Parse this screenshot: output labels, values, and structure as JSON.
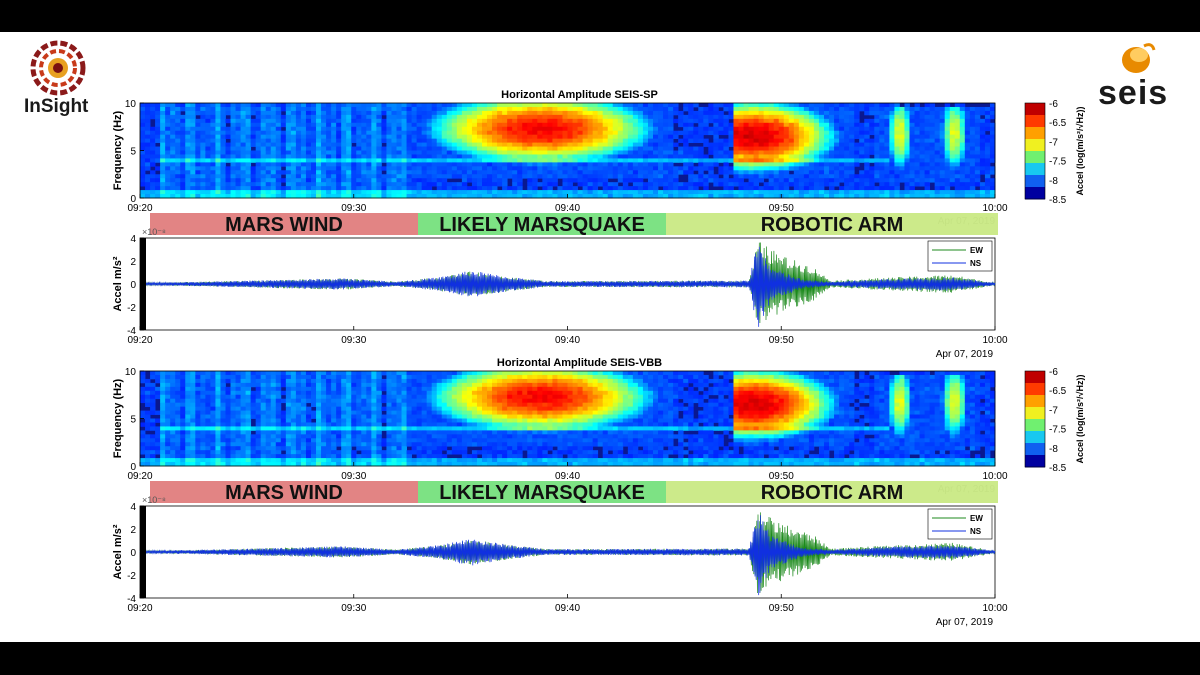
{
  "logos": {
    "left_text": "InSight",
    "right_text": "seis"
  },
  "colorbar": {
    "ticks": [
      "-6",
      "-6.5",
      "-7",
      "-7.5",
      "-8",
      "-8.5"
    ],
    "label": "Accel (log(m/s²/√Hz))",
    "colors": [
      "#c00000",
      "#ff3b00",
      "#ffa000",
      "#f0f020",
      "#70f070",
      "#18c8f0",
      "#1060f0",
      "#0000a0"
    ]
  },
  "phases": [
    {
      "label": "MARS WIND",
      "color": "#e07a7a"
    },
    {
      "label": "LIKELY MARSQUAKE",
      "color": "#72e07a"
    },
    {
      "label": "ROBOTIC ARM",
      "color": "#c8e880"
    }
  ],
  "date_label": "Apr 07, 2019",
  "legend": {
    "ew": "EW",
    "ns": "NS",
    "ew_color": "#1c8a1c",
    "ns_color": "#1030e0"
  },
  "panels": [
    {
      "spectrogram": {
        "title": "Horizontal Amplitude SEIS-SP",
        "ylabel": "Frequency (Hz)",
        "yticks": [
          "0",
          "5",
          "10"
        ],
        "xticks": [
          "09:20",
          "09:30",
          "09:40",
          "09:50",
          "10:00"
        ]
      },
      "waveform": {
        "ylabel": "Accel m/s²",
        "exponent": "×10⁻⁸",
        "yticks": [
          "4",
          "2",
          "0",
          "-2",
          "-4"
        ],
        "xticks": [
          "09:20",
          "09:30",
          "09:40",
          "09:50",
          "10:00"
        ]
      }
    },
    {
      "spectrogram": {
        "title": "Horizontal Amplitude SEIS-VBB",
        "ylabel": "Frequency (Hz)",
        "yticks": [
          "0",
          "5",
          "10"
        ],
        "xticks": [
          "09:20",
          "09:30",
          "09:40",
          "09:50",
          "10:00"
        ]
      },
      "waveform": {
        "ylabel": "Accel m/s²",
        "exponent": "×10⁻⁸",
        "yticks": [
          "4",
          "2",
          "0",
          "-2",
          "-4"
        ],
        "xticks": [
          "09:20",
          "09:30",
          "09:40",
          "09:50",
          "10:00"
        ]
      }
    }
  ],
  "chart_data": [
    {
      "type": "heatmap",
      "title": "Horizontal Amplitude SEIS-SP",
      "ylabel": "Frequency (Hz)",
      "ylim": [
        0,
        10
      ],
      "x_range": [
        "09:20",
        "10:00"
      ],
      "colorbar_range": [
        -8.5,
        -6
      ],
      "features": [
        {
          "name": "marsquake",
          "t_start_min": 13.5,
          "t_end_min": 24,
          "f_low": 3,
          "f_high": 9.5,
          "peak": -6.3
        },
        {
          "name": "arm-burst-1",
          "t_start_min": 28.7,
          "t_end_min": 32.3,
          "f_low": 3,
          "f_high": 10,
          "peak": -6.2
        },
        {
          "name": "arm-burst-2",
          "t_start_min": 35.3,
          "t_end_min": 35.8,
          "f_low": 2.5,
          "f_high": 9,
          "peak": -7
        },
        {
          "name": "arm-burst-3",
          "t_start_min": 37.8,
          "t_end_min": 38.4,
          "f_low": 2.5,
          "f_high": 9,
          "peak": -7
        }
      ]
    },
    {
      "type": "line",
      "title": "",
      "ylabel": "Accel m/s²",
      "ylim": [
        -4e-08,
        4e-08
      ],
      "x_range": [
        "09:20",
        "10:00"
      ],
      "series": [
        {
          "name": "EW",
          "envelope": [
            {
              "t": 0,
              "a": 0.1
            },
            {
              "t": 3,
              "a": 0.2
            },
            {
              "t": 9.5,
              "a": 0.5
            },
            {
              "t": 12,
              "a": 0.2
            },
            {
              "t": 14,
              "a": 0.6
            },
            {
              "t": 15.5,
              "a": 1.1
            },
            {
              "t": 17,
              "a": 0.7
            },
            {
              "t": 19,
              "a": 0.25
            },
            {
              "t": 28.5,
              "a": 0.3
            },
            {
              "t": 28.9,
              "a": 3.8
            },
            {
              "t": 30,
              "a": 2.5
            },
            {
              "t": 31.5,
              "a": 1.5
            },
            {
              "t": 32.3,
              "a": 0.3
            },
            {
              "t": 35.5,
              "a": 0.6
            },
            {
              "t": 38,
              "a": 0.8
            },
            {
              "t": 40,
              "a": 0.1
            }
          ]
        },
        {
          "name": "NS",
          "envelope": [
            {
              "t": 0,
              "a": 0.1
            },
            {
              "t": 3,
              "a": 0.2
            },
            {
              "t": 9.5,
              "a": 0.5
            },
            {
              "t": 12,
              "a": 0.2
            },
            {
              "t": 14,
              "a": 0.6
            },
            {
              "t": 15.5,
              "a": 1.2
            },
            {
              "t": 17,
              "a": 0.7
            },
            {
              "t": 19,
              "a": 0.25
            },
            {
              "t": 28.5,
              "a": 0.3
            },
            {
              "t": 28.9,
              "a": 4
            },
            {
              "t": 29.5,
              "a": 1.5
            },
            {
              "t": 31,
              "a": 0.4
            },
            {
              "t": 32.3,
              "a": 0.2
            },
            {
              "t": 35.5,
              "a": 0.5
            },
            {
              "t": 38,
              "a": 0.6
            },
            {
              "t": 40,
              "a": 0.1
            }
          ]
        }
      ]
    },
    {
      "type": "heatmap",
      "title": "Horizontal Amplitude SEIS-VBB",
      "ylabel": "Frequency (Hz)",
      "ylim": [
        0,
        10
      ],
      "x_range": [
        "09:20",
        "10:00"
      ],
      "colorbar_range": [
        -8.5,
        -6
      ],
      "features": [
        {
          "name": "marsquake",
          "t_start_min": 13.5,
          "t_end_min": 24,
          "f_low": 3,
          "f_high": 9.5,
          "peak": -6.3
        },
        {
          "name": "arm-burst-1",
          "t_start_min": 28.7,
          "t_end_min": 32.3,
          "f_low": 3,
          "f_high": 10,
          "peak": -6.2
        },
        {
          "name": "arm-burst-2",
          "t_start_min": 35.3,
          "t_end_min": 35.8,
          "f_low": 2.5,
          "f_high": 9,
          "peak": -7
        },
        {
          "name": "arm-burst-3",
          "t_start_min": 37.8,
          "t_end_min": 38.4,
          "f_low": 2.5,
          "f_high": 9,
          "peak": -7
        }
      ]
    },
    {
      "type": "line",
      "title": "",
      "ylabel": "Accel m/s²",
      "ylim": [
        -4e-08,
        4e-08
      ],
      "x_range": [
        "09:20",
        "10:00"
      ],
      "series": [
        {
          "name": "EW",
          "envelope": [
            {
              "t": 0,
              "a": 0.1
            },
            {
              "t": 3,
              "a": 0.2
            },
            {
              "t": 9.5,
              "a": 0.5
            },
            {
              "t": 12,
              "a": 0.2
            },
            {
              "t": 14,
              "a": 0.6
            },
            {
              "t": 15.5,
              "a": 1.1
            },
            {
              "t": 17,
              "a": 0.7
            },
            {
              "t": 19,
              "a": 0.25
            },
            {
              "t": 28.5,
              "a": 0.3
            },
            {
              "t": 28.9,
              "a": 3.8
            },
            {
              "t": 30,
              "a": 2.5
            },
            {
              "t": 31.5,
              "a": 1.5
            },
            {
              "t": 32.3,
              "a": 0.3
            },
            {
              "t": 35.5,
              "a": 0.6
            },
            {
              "t": 38,
              "a": 0.8
            },
            {
              "t": 40,
              "a": 0.1
            }
          ]
        },
        {
          "name": "NS",
          "envelope": [
            {
              "t": 0,
              "a": 0.1
            },
            {
              "t": 3,
              "a": 0.2
            },
            {
              "t": 9.5,
              "a": 0.5
            },
            {
              "t": 12,
              "a": 0.2
            },
            {
              "t": 14,
              "a": 0.6
            },
            {
              "t": 15.5,
              "a": 1.2
            },
            {
              "t": 17,
              "a": 0.7
            },
            {
              "t": 19,
              "a": 0.25
            },
            {
              "t": 28.5,
              "a": 0.3
            },
            {
              "t": 28.9,
              "a": 4
            },
            {
              "t": 29.5,
              "a": 1.5
            },
            {
              "t": 31,
              "a": 0.4
            },
            {
              "t": 32.3,
              "a": 0.2
            },
            {
              "t": 35.5,
              "a": 0.5
            },
            {
              "t": 38,
              "a": 0.6
            },
            {
              "t": 40,
              "a": 0.1
            }
          ]
        }
      ]
    }
  ]
}
